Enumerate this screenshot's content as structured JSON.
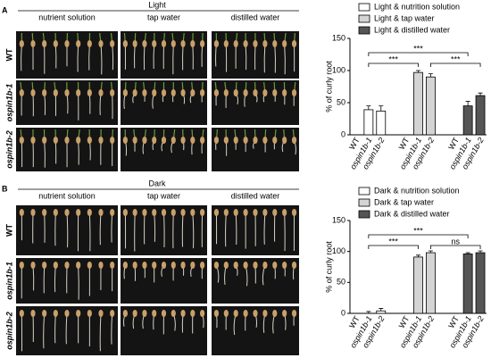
{
  "panels": [
    {
      "label": "A",
      "condition": "Light",
      "columns": [
        "nutrient solution",
        "tap water",
        "distilled water"
      ],
      "rows": [
        "WT",
        "ospin1b-1",
        "ospin1b-2"
      ]
    },
    {
      "label": "B",
      "condition": "Dark",
      "columns": [
        "nutrient solution",
        "tap water",
        "distilled water"
      ],
      "rows": [
        "WT",
        "ospin1b-1",
        "ospin1b-2"
      ]
    }
  ],
  "chart_data": [
    {
      "type": "bar",
      "ylabel": "% of curly root",
      "categories": [
        "WT",
        "ospin1b-1",
        "ospin1b-2",
        "WT",
        "ospin1b-1",
        "ospin1b-2",
        "WT",
        "ospin1b-1",
        "ospin1b-2"
      ],
      "series": [
        {
          "name": "Light & nutrition solution",
          "color": "#ffffff",
          "values": [
            0,
            39,
            37,
            null,
            null,
            null,
            null,
            null,
            null
          ],
          "errors": [
            0,
            6,
            8,
            null,
            null,
            null,
            null,
            null,
            null
          ]
        },
        {
          "name": "Light & tap water",
          "color": "#d4d4d4",
          "values": [
            null,
            null,
            null,
            0,
            97,
            90,
            null,
            null,
            null
          ],
          "errors": [
            null,
            null,
            null,
            0,
            3,
            5,
            null,
            null,
            null
          ]
        },
        {
          "name": "Light & distilled water",
          "color": "#555555",
          "values": [
            null,
            null,
            null,
            null,
            null,
            null,
            0,
            45,
            61
          ],
          "errors": [
            null,
            null,
            null,
            null,
            null,
            null,
            0,
            7,
            4
          ]
        }
      ],
      "ylim": [
        0,
        150
      ],
      "yticks": [
        0,
        50,
        100,
        150
      ],
      "annotations": [
        "***",
        "***",
        "***"
      ]
    },
    {
      "type": "bar",
      "ylabel": "% of curly root",
      "categories": [
        "WT",
        "ospin1b-1",
        "ospin1b-2",
        "WT",
        "ospin1b-1",
        "ospin1b-2",
        "WT",
        "ospin1b-1",
        "ospin1b-2"
      ],
      "series": [
        {
          "name": "Dark & nutrition solution",
          "color": "#ffffff",
          "values": [
            0,
            0,
            4,
            null,
            null,
            null,
            null,
            null,
            null
          ],
          "errors": [
            0,
            3,
            4,
            null,
            null,
            null,
            null,
            null,
            null
          ]
        },
        {
          "name": "Dark & tap water",
          "color": "#d4d4d4",
          "values": [
            null,
            null,
            null,
            0,
            91,
            98,
            null,
            null,
            null
          ],
          "errors": [
            null,
            null,
            null,
            0,
            3,
            3,
            null,
            null,
            null
          ]
        },
        {
          "name": "Dark & distilled water",
          "color": "#555555",
          "values": [
            null,
            null,
            null,
            null,
            null,
            null,
            0,
            96,
            98
          ],
          "errors": [
            null,
            null,
            null,
            null,
            null,
            null,
            0,
            2,
            3
          ]
        }
      ],
      "ylim": [
        0,
        150
      ],
      "yticks": [
        0,
        50,
        100,
        150
      ],
      "annotations": [
        "***",
        "ns",
        "***"
      ]
    }
  ]
}
